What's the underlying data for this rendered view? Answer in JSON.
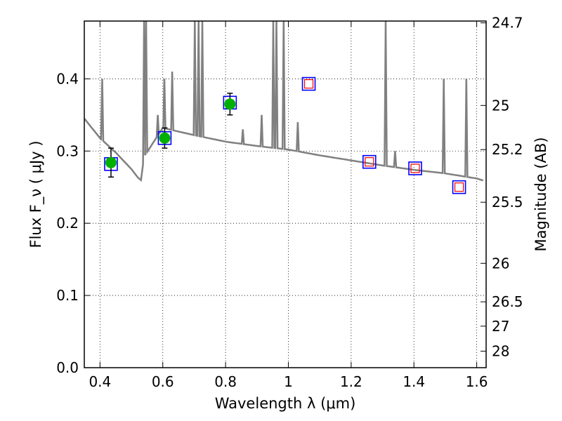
{
  "chart_data": {
    "type": "line",
    "xlabel": "Wavelength  λ (μm)",
    "ylabel": "Flux  F_ν  ( μJy )",
    "ylabel_right": "Magnitude (AB)",
    "xlim": [
      0.35,
      1.63
    ],
    "ylim": [
      0.0,
      0.48
    ],
    "grid": true,
    "x_ticks": [
      0.4,
      0.6,
      0.8,
      1.0,
      1.2,
      1.4,
      1.6
    ],
    "x_tick_labels": [
      "0.4",
      "0.6",
      "0.8",
      "1",
      "1.2",
      "1.4",
      "1.6"
    ],
    "y_ticks": [
      0.0,
      0.1,
      0.2,
      0.3,
      0.4
    ],
    "y_tick_labels": [
      "0.0",
      "0.1",
      "0.2",
      "0.3",
      "0.4"
    ],
    "right_ticks": [
      {
        "label": "24.7",
        "flux": 0.4775
      },
      {
        "label": "25",
        "flux": 0.3631
      },
      {
        "label": "25.2",
        "flux": 0.302
      },
      {
        "label": "25.5",
        "flux": 0.2291
      },
      {
        "label": "26",
        "flux": 0.1445
      },
      {
        "label": "26.5",
        "flux": 0.0912
      },
      {
        "label": "27",
        "flux": 0.0575
      },
      {
        "label": "28",
        "flux": 0.0229
      }
    ],
    "series": [
      {
        "kind": "model-spectrum",
        "color": "#808080",
        "continuum": [
          [
            0.35,
            0.345
          ],
          [
            0.4,
            0.318
          ],
          [
            0.45,
            0.298
          ],
          [
            0.5,
            0.275
          ],
          [
            0.53,
            0.258
          ],
          [
            0.54,
            0.292
          ],
          [
            0.6,
            0.332
          ],
          [
            0.7,
            0.322
          ],
          [
            0.8,
            0.313
          ],
          [
            0.9,
            0.307
          ],
          [
            1.0,
            0.302
          ],
          [
            1.1,
            0.294
          ],
          [
            1.2,
            0.287
          ],
          [
            1.3,
            0.28
          ],
          [
            1.4,
            0.274
          ],
          [
            1.5,
            0.269
          ],
          [
            1.6,
            0.262
          ],
          [
            1.63,
            0.258
          ]
        ],
        "emission_lines": [
          [
            0.407,
            0.4
          ],
          [
            0.5405,
            0.48
          ],
          [
            0.547,
            0.48
          ],
          [
            0.584,
            0.35
          ],
          [
            0.605,
            0.4
          ],
          [
            0.63,
            0.41
          ],
          [
            0.702,
            0.48
          ],
          [
            0.714,
            0.48
          ],
          [
            0.726,
            0.48
          ],
          [
            0.855,
            0.33
          ],
          [
            0.915,
            0.35
          ],
          [
            0.952,
            0.48
          ],
          [
            0.962,
            0.48
          ],
          [
            0.985,
            0.48
          ],
          [
            1.03,
            0.34
          ],
          [
            1.31,
            0.48
          ],
          [
            1.34,
            0.3
          ],
          [
            1.495,
            0.4
          ],
          [
            1.567,
            0.4
          ]
        ]
      },
      {
        "kind": "observed-points",
        "color": "#00b000",
        "points": [
          {
            "x": 0.435,
            "y": 0.284,
            "yerr": 0.02
          },
          {
            "x": 0.606,
            "y": 0.318,
            "yerr": 0.014
          },
          {
            "x": 0.814,
            "y": 0.365,
            "yerr": 0.015
          }
        ]
      },
      {
        "kind": "model-photometry",
        "color": "#0000ff",
        "points": [
          {
            "x": 0.435,
            "y": 0.282
          },
          {
            "x": 0.606,
            "y": 0.318
          },
          {
            "x": 0.814,
            "y": 0.367
          },
          {
            "x": 1.065,
            "y": 0.393
          },
          {
            "x": 1.258,
            "y": 0.285
          },
          {
            "x": 1.404,
            "y": 0.276
          },
          {
            "x": 1.544,
            "y": 0.25
          }
        ]
      },
      {
        "kind": "upper-limits",
        "color": "#ff0000",
        "points": [
          {
            "x": 1.065,
            "y": 0.393
          },
          {
            "x": 1.258,
            "y": 0.285
          },
          {
            "x": 1.404,
            "y": 0.276
          },
          {
            "x": 1.544,
            "y": 0.25
          }
        ]
      }
    ]
  }
}
